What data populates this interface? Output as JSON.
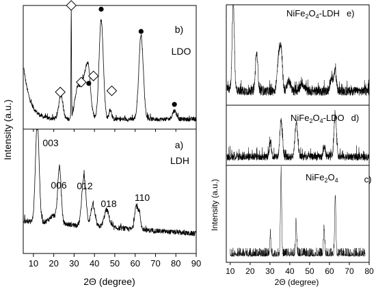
{
  "chart_data": [
    {
      "type": "line",
      "panels": [
        {
          "label": "b)",
          "sample": "LDO",
          "peaks": [
            {
              "x": 23.5,
              "y": 20,
              "width": 1.0
            },
            {
              "x": 28.6,
              "y": 95,
              "width": 0.12
            },
            {
              "x": 31.7,
              "y": 24,
              "width": 1.4
            },
            {
              "x": 35.5,
              "y": 34,
              "width": 1.7
            },
            {
              "x": 37.2,
              "y": 22,
              "width": 1.0
            },
            {
              "x": 43.3,
              "y": 80,
              "width": 1.05
            },
            {
              "x": 47.8,
              "y": 8,
              "width": 0.6
            },
            {
              "x": 62.9,
              "y": 68,
              "width": 1.1
            },
            {
              "x": 79.3,
              "y": 7,
              "width": 1.0
            }
          ],
          "markers": [
            {
              "x": 28.6,
              "y": 100,
              "symbol": "diamond"
            },
            {
              "x": 43.3,
              "y": 97,
              "symbol": "dot"
            },
            {
              "x": 62.9,
              "y": 79,
              "symbol": "dot"
            },
            {
              "x": 37.2,
              "y": 37,
              "symbol": "dot"
            },
            {
              "x": 79.3,
              "y": 20,
              "symbol": "dot"
            },
            {
              "x": 23.2,
              "y": 30,
              "symbol": "diamond"
            },
            {
              "x": 33.5,
              "y": 38,
              "symbol": "diamond"
            },
            {
              "x": 39.5,
              "y": 43,
              "symbol": "diamond"
            },
            {
              "x": 48.5,
              "y": 31,
              "symbol": "diamond"
            }
          ]
        },
        {
          "label": "a)",
          "sample": "LDH",
          "peaks": [
            {
              "x": 11.9,
              "y": 82,
              "width": 0.9,
              "label": "003"
            },
            {
              "x": 22.8,
              "y": 44,
              "width": 0.8,
              "label": "006"
            },
            {
              "x": 34.8,
              "y": 40,
              "width": 1.0,
              "label": "012"
            },
            {
              "x": 39.2,
              "y": 17,
              "width": 1.0
            },
            {
              "x": 46.0,
              "y": 14,
              "width": 1.2,
              "label": "018"
            },
            {
              "x": 60.4,
              "y": 18,
              "width": 0.7,
              "label": "110"
            },
            {
              "x": 62.0,
              "y": 14,
              "width": 0.7
            }
          ]
        }
      ],
      "xlabel": "2Θ (degree)",
      "ylabel": "Intensity (a.u.)",
      "xlim": [
        5,
        90
      ],
      "xticks": [
        "10",
        "20",
        "30",
        "40",
        "50",
        "60",
        "70",
        "80",
        "90"
      ]
    },
    {
      "type": "line",
      "panels": [
        {
          "label": "e)",
          "sample_main": "NiFe",
          "sample_sub": "2",
          "sample_mid": "O",
          "sample_sub2": "4",
          "sample_tail": "-LDH",
          "peaks": [
            {
              "x": 11.5,
              "y": 88,
              "width": 0.55
            },
            {
              "x": 23.3,
              "y": 38,
              "width": 0.6
            },
            {
              "x": 34.6,
              "y": 38,
              "width": 0.8
            },
            {
              "x": 35.8,
              "y": 30,
              "width": 0.6
            },
            {
              "x": 39.5,
              "y": 10,
              "width": 0.8
            },
            {
              "x": 46.2,
              "y": 8,
              "width": 1.0
            },
            {
              "x": 61.0,
              "y": 14,
              "width": 0.6
            },
            {
              "x": 62.8,
              "y": 20,
              "width": 0.6
            }
          ]
        },
        {
          "label": "d)",
          "sample_main": "NiFe",
          "sample_sub": "2",
          "sample_mid": "O",
          "sample_sub2": "4",
          "sample_tail": "-LDO",
          "peaks": [
            {
              "x": 30.2,
              "y": 25,
              "width": 0.5
            },
            {
              "x": 35.6,
              "y": 62,
              "width": 0.6
            },
            {
              "x": 43.3,
              "y": 58,
              "width": 0.7
            },
            {
              "x": 57.4,
              "y": 18,
              "width": 0.5
            },
            {
              "x": 62.9,
              "y": 70,
              "width": 0.6
            }
          ]
        },
        {
          "label": "c)",
          "sample_main": "NiFe",
          "sample_sub": "2",
          "sample_mid": "O",
          "sample_sub2": "4",
          "sample_tail": "",
          "peaks": [
            {
              "x": 30.2,
              "y": 22,
              "width": 0.25
            },
            {
              "x": 35.6,
              "y": 86,
              "width": 0.3
            },
            {
              "x": 43.2,
              "y": 34,
              "width": 0.3
            },
            {
              "x": 57.3,
              "y": 26,
              "width": 0.3
            },
            {
              "x": 62.9,
              "y": 62,
              "width": 0.3
            }
          ]
        }
      ],
      "xlabel": "2Θ (degree)",
      "ylabel": "Intensity (a.u.)",
      "xlim": [
        8,
        80
      ],
      "xticks": [
        "10",
        "20",
        "30",
        "40",
        "50",
        "60",
        "70",
        "80"
      ]
    }
  ]
}
